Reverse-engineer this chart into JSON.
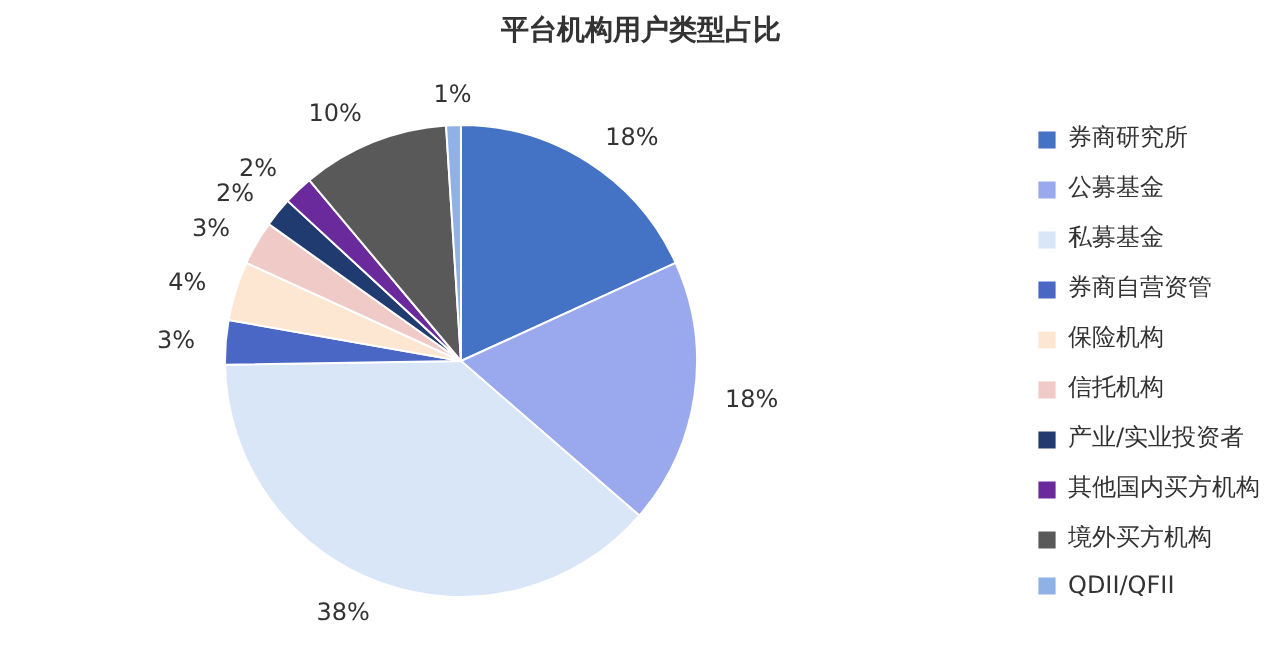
{
  "chart_data": {
    "type": "pie",
    "title": "平台机构用户类型占比",
    "categories": [
      "券商研究所",
      "公募基金",
      "私募基金",
      "券商自营资管",
      "保险机构",
      "信托机构",
      "产业/实业投资者",
      "其他国内买方机构",
      "境外买方机构",
      "QDII/QFII"
    ],
    "values": [
      18,
      18,
      38,
      3,
      4,
      3,
      2,
      2,
      10,
      1
    ],
    "value_labels": [
      "18%",
      "18%",
      "38%",
      "3%",
      "4%",
      "3%",
      "2%",
      "2%",
      "10%",
      "1%"
    ],
    "colors": [
      "#4472c4",
      "#9aa8ee",
      "#d9e6f7",
      "#4a67c6",
      "#fde6d2",
      "#f0cac6",
      "#1f3b70",
      "#6b2a9b",
      "#595959",
      "#8fb1e6"
    ],
    "legend": "right"
  }
}
